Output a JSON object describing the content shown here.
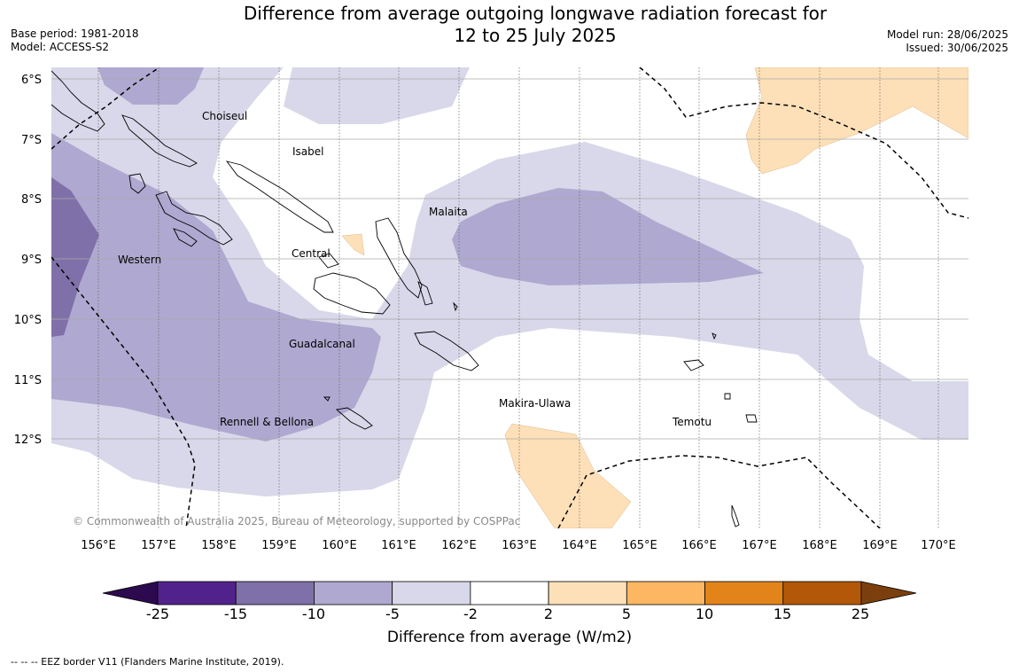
{
  "title_line1": "Difference from average outgoing longwave radiation forecast for",
  "title_line2": "12 to 25 July 2025",
  "base_period": "Base period: 1981-2018",
  "model": "Model: ACCESS-S2",
  "model_run": "Model run: 28/06/2025",
  "issued": "Issued: 30/06/2025",
  "copyright": "© Commonwealth of Australia 2025, Bureau of Meteorology, supported by COSPPac",
  "lat_labels": [
    "6°S",
    "7°S",
    "8°S",
    "9°S",
    "10°S",
    "11°S",
    "12°S"
  ],
  "lon_labels": [
    "156°E",
    "157°E",
    "158°E",
    "159°E",
    "160°E",
    "161°E",
    "162°E",
    "163°E",
    "164°E",
    "165°E",
    "166°E",
    "167°E",
    "168°E",
    "169°E",
    "170°E"
  ],
  "region_labels": {
    "choiseul": "Choiseul",
    "isabel": "Isabel",
    "malaita": "Malaita",
    "western": "Western",
    "central": "Central",
    "guadalcanal": "Guadalcanal",
    "makira_ulawa": "Makira-Ulawa",
    "rennell_bellona": "Rennell & Bellona",
    "temotu": "Temotu"
  },
  "colorbar": {
    "title": "Difference from average (W/m2)",
    "ticks": [
      "-25",
      "-15",
      "-10",
      "-5",
      "-2",
      "2",
      "5",
      "10",
      "15",
      "25"
    ],
    "colors": [
      "#52228c",
      "#7f70a9",
      "#afa8d0",
      "#d8d8ea",
      "#ffffff",
      "#fde0b8",
      "#fdb762",
      "#e3841a",
      "#b25808"
    ],
    "under_color": "#2d0a4f",
    "over_color": "#7b3f0e"
  },
  "eez_legend": "--  --  -- EEZ border V11 (Flanders Marine Institute, 2019)."
}
